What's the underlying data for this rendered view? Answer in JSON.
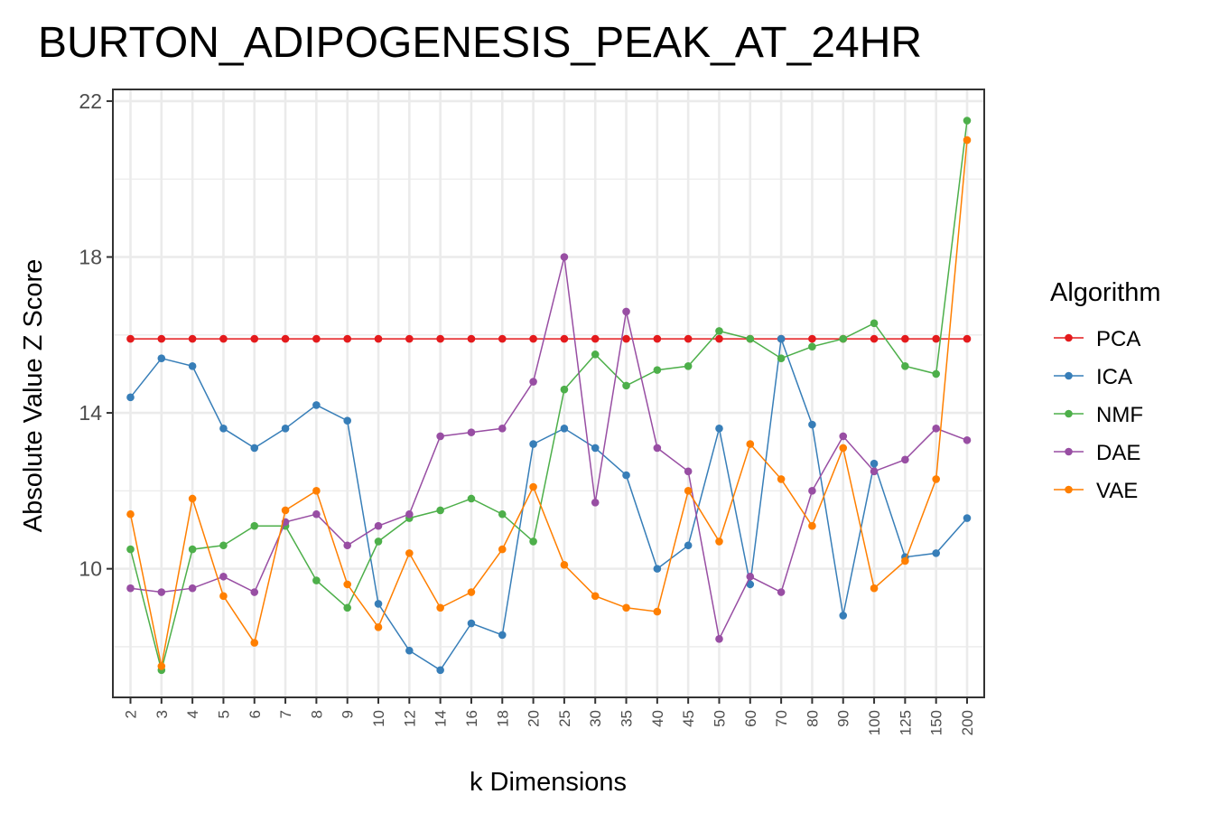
{
  "chart_data": {
    "type": "line",
    "title": "BURTON_ADIPOGENESIS_PEAK_AT_24HR",
    "xlabel": "k Dimensions",
    "ylabel": "Absolute Value Z Score",
    "ylim": [
      6.7,
      22.3
    ],
    "yticks": [
      "10",
      "14",
      "18",
      "22"
    ],
    "ytick_values": [
      10,
      14,
      18,
      22
    ],
    "grid": true,
    "legend_title": "Algorithm",
    "legend_position": "right",
    "categories": [
      "2",
      "3",
      "4",
      "5",
      "6",
      "7",
      "8",
      "9",
      "10",
      "12",
      "14",
      "16",
      "18",
      "20",
      "25",
      "30",
      "35",
      "40",
      "45",
      "50",
      "60",
      "70",
      "80",
      "90",
      "100",
      "125",
      "150",
      "200"
    ],
    "series": [
      {
        "name": "PCA",
        "color": "#E41A1C",
        "values": [
          15.9,
          15.9,
          15.9,
          15.9,
          15.9,
          15.9,
          15.9,
          15.9,
          15.9,
          15.9,
          15.9,
          15.9,
          15.9,
          15.9,
          15.9,
          15.9,
          15.9,
          15.9,
          15.9,
          15.9,
          15.9,
          15.9,
          15.9,
          15.9,
          15.9,
          15.9,
          15.9,
          15.9
        ]
      },
      {
        "name": "ICA",
        "color": "#377EB8",
        "values": [
          14.4,
          15.4,
          15.2,
          13.6,
          13.1,
          13.6,
          14.2,
          13.8,
          9.1,
          7.9,
          7.4,
          8.6,
          8.3,
          13.2,
          13.6,
          13.1,
          12.4,
          10.0,
          10.6,
          13.6,
          9.6,
          15.9,
          13.7,
          8.8,
          12.7,
          10.3,
          10.4,
          11.3
        ]
      },
      {
        "name": "NMF",
        "color": "#4DAF4A",
        "values": [
          10.5,
          7.4,
          10.5,
          10.6,
          11.1,
          11.1,
          9.7,
          9.0,
          10.7,
          11.3,
          11.5,
          11.8,
          11.4,
          10.7,
          14.6,
          15.5,
          14.7,
          15.1,
          15.2,
          16.1,
          15.9,
          15.4,
          15.7,
          15.9,
          16.3,
          15.2,
          15.0,
          21.5
        ]
      },
      {
        "name": "DAE",
        "color": "#984EA3",
        "values": [
          9.5,
          9.4,
          9.5,
          9.8,
          9.4,
          11.2,
          11.4,
          10.6,
          11.1,
          11.4,
          13.4,
          13.5,
          13.6,
          14.8,
          18.0,
          11.7,
          16.6,
          13.1,
          12.5,
          8.2,
          9.8,
          9.4,
          12.0,
          13.4,
          12.5,
          12.8,
          13.6,
          13.3
        ]
      },
      {
        "name": "VAE",
        "color": "#FF7F00",
        "values": [
          11.4,
          7.5,
          11.8,
          9.3,
          8.1,
          11.5,
          12.0,
          9.6,
          8.5,
          10.4,
          9.0,
          9.4,
          10.5,
          12.1,
          10.1,
          9.3,
          9.0,
          8.9,
          12.0,
          10.7,
          13.2,
          12.3,
          11.1,
          13.1,
          9.5,
          10.2,
          12.3,
          21.0
        ]
      }
    ]
  }
}
